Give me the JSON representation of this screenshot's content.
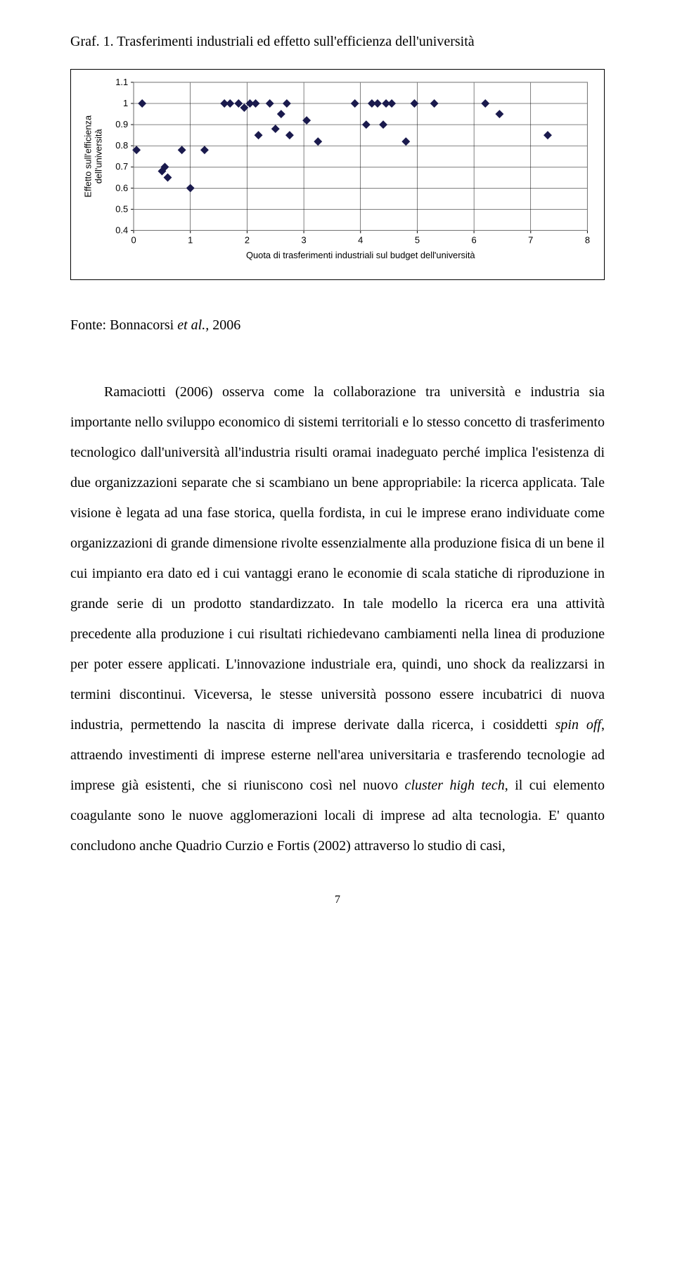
{
  "chart": {
    "title": "Graf. 1. Trasferimenti industriali ed effetto sull'efficienza dell'università",
    "type": "scatter",
    "xlim": [
      0,
      8
    ],
    "ylim": [
      0.4,
      1.1
    ],
    "xticks": [
      0,
      1,
      2,
      3,
      4,
      5,
      6,
      7,
      8
    ],
    "yticks": [
      0.4,
      0.5,
      0.6,
      0.7,
      0.8,
      0.9,
      1,
      1.1
    ],
    "xlabel": "Quota di trasferimenti industriali sul budget dell'università",
    "ylabel": "Effetto sull'efficienza dell'università",
    "marker_color": "#1a1a4d",
    "marker_size": 6,
    "background_color": "#ffffff",
    "grid_color": "#000000",
    "border_color": "#7f7f7f",
    "axis_fontsize": 13,
    "label_fontsize": 13,
    "points": [
      [
        0.05,
        0.78
      ],
      [
        0.15,
        1.0
      ],
      [
        0.5,
        0.68
      ],
      [
        0.55,
        0.7
      ],
      [
        0.6,
        0.65
      ],
      [
        0.85,
        0.78
      ],
      [
        1.0,
        0.6
      ],
      [
        1.25,
        0.78
      ],
      [
        1.6,
        1.0
      ],
      [
        1.7,
        1.0
      ],
      [
        1.85,
        1.0
      ],
      [
        1.95,
        0.98
      ],
      [
        2.05,
        1.0
      ],
      [
        2.15,
        1.0
      ],
      [
        2.2,
        0.85
      ],
      [
        2.4,
        1.0
      ],
      [
        2.5,
        0.88
      ],
      [
        2.6,
        0.95
      ],
      [
        2.7,
        1.0
      ],
      [
        2.75,
        0.85
      ],
      [
        3.05,
        0.92
      ],
      [
        3.25,
        0.82
      ],
      [
        3.9,
        1.0
      ],
      [
        4.1,
        0.9
      ],
      [
        4.2,
        1.0
      ],
      [
        4.3,
        1.0
      ],
      [
        4.4,
        0.9
      ],
      [
        4.45,
        1.0
      ],
      [
        4.55,
        1.0
      ],
      [
        4.8,
        0.82
      ],
      [
        4.95,
        1.0
      ],
      [
        5.3,
        1.0
      ],
      [
        6.2,
        1.0
      ],
      [
        6.45,
        0.95
      ],
      [
        7.3,
        0.85
      ]
    ]
  },
  "source": {
    "prefix": "Fonte: Bonnacorsi ",
    "et_al": "et al., ",
    "year": "2006"
  },
  "paragraph": {
    "t1": "Ramaciotti (2006) osserva come la collaborazione tra università e industria sia importante nello sviluppo economico di sistemi territoriali e lo stesso concetto di trasferimento tecnologico dall'università all'industria risulti oramai inadeguato perché implica l'esistenza di due organizzazioni separate che si scambiano un bene appropriabile: la ricerca applicata. Tale visione è legata ad una fase storica, quella fordista, in cui le imprese erano individuate come organizzazioni di grande dimensione rivolte essenzialmente alla produzione fisica di un bene il cui impianto era dato ed i cui vantaggi erano le economie di scala statiche di riproduzione in grande serie di un prodotto standardizzato. In tale modello la ricerca era una attività precedente alla produzione i cui risultati richiedevano cambiamenti nella linea di produzione per poter essere applicati. L'innovazione industriale era, quindi, uno shock da realizzarsi in termini discontinui. Viceversa, le stesse università possono essere incubatrici di nuova industria, permettendo la nascita di imprese derivate dalla ricerca, i cosiddetti ",
    "spin_off": "spin off",
    "t2": ", attraendo investimenti di imprese esterne nell'area universitaria e trasferendo tecnologie ad imprese già esistenti, che si riuniscono così nel nuovo ",
    "cluster": "cluster high tech",
    "t3": ", il cui elemento coagulante sono le nuove agglomerazioni locali di imprese ad alta tecnologia. E' quanto concludono anche Quadrio Curzio e Fortis (2002) attraverso lo studio di casi,"
  },
  "page_number": "7"
}
